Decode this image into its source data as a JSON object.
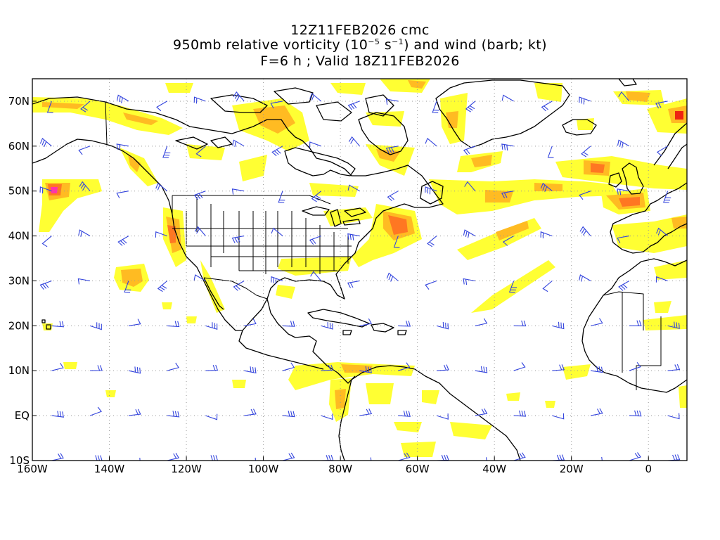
{
  "header": {
    "line1": "12Z11FEB2026 cmc",
    "line2_pre": "950mb relative vorticity (10",
    "line2_exp": "−5",
    "line2_mid": " s",
    "line2_exp2": "−1",
    "line2_post": ") and wind (barb; kt)",
    "line3": "F=6 h ; Valid 18Z11FEB2026"
  },
  "axes": {
    "lon_labels": [
      "160W",
      "140W",
      "120W",
      "100W",
      "80W",
      "60W",
      "40W",
      "20W",
      "0"
    ],
    "lat_labels": [
      "70N",
      "60N",
      "50N",
      "40N",
      "30N",
      "20N",
      "10N",
      "EQ",
      "10S"
    ]
  },
  "map_extent": {
    "lon": [
      -160,
      10
    ],
    "lat": [
      -10,
      75
    ]
  },
  "colors": {
    "low": "#ffff33",
    "mid": "#ffbb22",
    "high": "#ff7722",
    "peak": "#ee2211",
    "max": "#ff33aa",
    "barb": "#3344dd",
    "coast": "#000000",
    "grid": "#999999"
  }
}
